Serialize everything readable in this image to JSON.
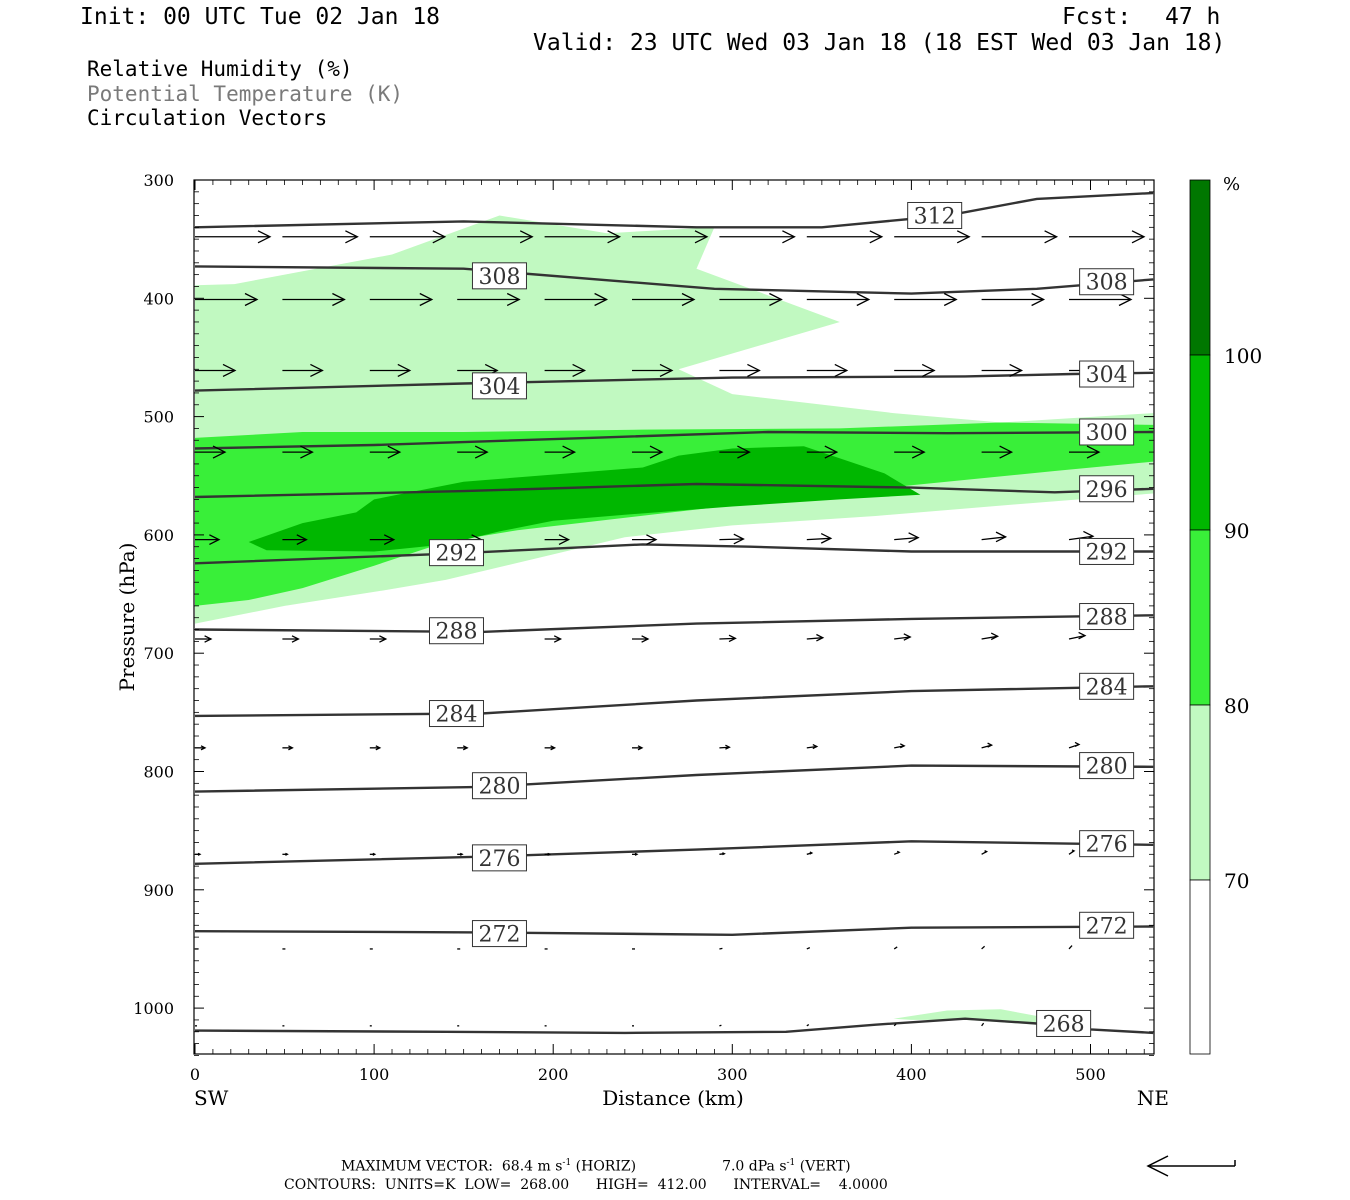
{
  "header": {
    "init": "Init: 00 UTC Tue 02 Jan 18",
    "fcst_label": "Fcst:",
    "fcst_value": "47 h",
    "valid": "Valid: 23 UTC Wed 03 Jan 18 (18 EST Wed 03 Jan 18)"
  },
  "legend": {
    "rh": "Relative Humidity (%)",
    "theta": "Potential Temperature (K)",
    "vectors": "Circulation Vectors"
  },
  "footer": {
    "maxvec": "MAXIMUM VECTOR:  68.4 m s",
    "maxvec_h": " (HORIZ)",
    "maxvec_v_prefix": "7.0 dPa s",
    "maxvec_v": " (VERT)",
    "sup": "-1",
    "contours": "CONTOURS:  UNITS=K  LOW=  268.00      HIGH=  412.00      INTERVAL=    4.0000"
  },
  "colors": {
    "rh70": "#c1f9c1",
    "rh80": "#39ef39",
    "rh90": "#00b700",
    "rh100": "#007700",
    "contour": "#333333",
    "text_gray": "#7a7a7a"
  },
  "chart_data": {
    "type": "cross-section",
    "xlabel": "Distance (km)",
    "ylabel": "Pressure (hPa)",
    "xlim": [
      0,
      535
    ],
    "ylim": [
      1040,
      300
    ],
    "x_ticks": [
      "0",
      "100",
      "200",
      "300",
      "400",
      "500"
    ],
    "y_ticks": [
      "300",
      "400",
      "500",
      "600",
      "700",
      "800",
      "900",
      "1000"
    ],
    "x_end_labels": {
      "left": "SW",
      "right": "NE"
    },
    "colorbar": {
      "unit": "%",
      "levels": [
        "70",
        "80",
        "90",
        "100"
      ]
    },
    "rh_fills": [
      {
        "level": 70,
        "points": [
          [
            0,
            389
          ],
          [
            22,
            388
          ],
          [
            110,
            363
          ],
          [
            170,
            330
          ],
          [
            230,
            345
          ],
          [
            290,
            340
          ],
          [
            280,
            375
          ],
          [
            360,
            420
          ],
          [
            270,
            460
          ],
          [
            300,
            481
          ],
          [
            390,
            497
          ],
          [
            450,
            505
          ],
          [
            535,
            497
          ],
          [
            535,
            565
          ],
          [
            460,
            574
          ],
          [
            380,
            584
          ],
          [
            300,
            592
          ],
          [
            240,
            602
          ],
          [
            190,
            620
          ],
          [
            140,
            638
          ],
          [
            105,
            647
          ],
          [
            50,
            660
          ],
          [
            0,
            675
          ]
        ]
      },
      {
        "level": 80,
        "points": [
          [
            0,
            518
          ],
          [
            60,
            513
          ],
          [
            150,
            513
          ],
          [
            250,
            511
          ],
          [
            360,
            510
          ],
          [
            450,
            505
          ],
          [
            535,
            507
          ],
          [
            535,
            538
          ],
          [
            480,
            546
          ],
          [
            400,
            558
          ],
          [
            330,
            570
          ],
          [
            260,
            582
          ],
          [
            180,
            596
          ],
          [
            140,
            606
          ],
          [
            100,
            626
          ],
          [
            60,
            645
          ],
          [
            30,
            655
          ],
          [
            0,
            660
          ]
        ]
      },
      {
        "level": 90,
        "points": [
          [
            30,
            606
          ],
          [
            60,
            590
          ],
          [
            90,
            581
          ],
          [
            100,
            570
          ],
          [
            150,
            555
          ],
          [
            250,
            543
          ],
          [
            270,
            533
          ],
          [
            300,
            527
          ],
          [
            340,
            525
          ],
          [
            385,
            548
          ],
          [
            405,
            566
          ],
          [
            360,
            570
          ],
          [
            300,
            576
          ],
          [
            240,
            583
          ],
          [
            200,
            588
          ],
          [
            170,
            597
          ],
          [
            140,
            608
          ],
          [
            100,
            614
          ],
          [
            40,
            613
          ]
        ]
      },
      {
        "level": 70,
        "points": [
          [
            390,
            1009
          ],
          [
            420,
            1002
          ],
          [
            450,
            1001
          ],
          [
            475,
            1008
          ],
          [
            470,
            1014
          ],
          [
            430,
            1010
          ],
          [
            400,
            1010
          ]
        ]
      }
    ],
    "theta_contours": [
      {
        "value": "312",
        "points": [
          [
            0,
            340
          ],
          [
            150,
            335
          ],
          [
            280,
            340
          ],
          [
            350,
            340
          ],
          [
            420,
            330
          ],
          [
            470,
            316
          ],
          [
            535,
            311
          ]
        ],
        "labels": [
          [
            413,
            330
          ]
        ]
      },
      {
        "value": "308",
        "points": [
          [
            0,
            373
          ],
          [
            150,
            375
          ],
          [
            290,
            392
          ],
          [
            400,
            396
          ],
          [
            470,
            392
          ],
          [
            535,
            384
          ]
        ],
        "labels": [
          [
            170,
            381
          ],
          [
            509,
            386
          ]
        ]
      },
      {
        "value": "304",
        "points": [
          [
            0,
            478
          ],
          [
            150,
            472
          ],
          [
            300,
            467
          ],
          [
            430,
            466
          ],
          [
            490,
            464
          ],
          [
            535,
            463
          ]
        ],
        "labels": [
          [
            170,
            474
          ],
          [
            509,
            464
          ]
        ]
      },
      {
        "value": "300",
        "points": [
          [
            0,
            527
          ],
          [
            100,
            524
          ],
          [
            220,
            518
          ],
          [
            320,
            513
          ],
          [
            420,
            514
          ],
          [
            535,
            513
          ]
        ],
        "labels": [
          [
            509,
            513
          ]
        ]
      },
      {
        "value": "296",
        "points": [
          [
            0,
            568
          ],
          [
            150,
            563
          ],
          [
            280,
            557
          ],
          [
            400,
            560
          ],
          [
            480,
            564
          ],
          [
            535,
            561
          ]
        ],
        "labels": [
          [
            509,
            561
          ]
        ]
      },
      {
        "value": "292",
        "points": [
          [
            0,
            624
          ],
          [
            140,
            616
          ],
          [
            250,
            608
          ],
          [
            310,
            610
          ],
          [
            400,
            614
          ],
          [
            535,
            614
          ]
        ],
        "labels": [
          [
            146,
            615
          ],
          [
            509,
            614
          ]
        ]
      },
      {
        "value": "288",
        "points": [
          [
            0,
            680
          ],
          [
            160,
            682
          ],
          [
            280,
            675
          ],
          [
            400,
            671
          ],
          [
            535,
            668
          ]
        ],
        "labels": [
          [
            146,
            681
          ],
          [
            509,
            669
          ]
        ]
      },
      {
        "value": "284",
        "points": [
          [
            0,
            753
          ],
          [
            160,
            751
          ],
          [
            280,
            740
          ],
          [
            400,
            732
          ],
          [
            535,
            728
          ]
        ],
        "labels": [
          [
            146,
            751
          ],
          [
            509,
            728
          ]
        ]
      },
      {
        "value": "280",
        "points": [
          [
            0,
            817
          ],
          [
            160,
            813
          ],
          [
            280,
            803
          ],
          [
            400,
            795
          ],
          [
            535,
            796
          ]
        ],
        "labels": [
          [
            170,
            812
          ],
          [
            509,
            795
          ]
        ]
      },
      {
        "value": "276",
        "points": [
          [
            0,
            878
          ],
          [
            160,
            872
          ],
          [
            280,
            866
          ],
          [
            400,
            859
          ],
          [
            535,
            862
          ]
        ],
        "labels": [
          [
            170,
            873
          ],
          [
            509,
            861
          ]
        ]
      },
      {
        "value": "272",
        "points": [
          [
            0,
            935
          ],
          [
            160,
            936
          ],
          [
            300,
            938
          ],
          [
            400,
            932
          ],
          [
            535,
            931
          ]
        ],
        "labels": [
          [
            170,
            937
          ],
          [
            509,
            930
          ]
        ]
      },
      {
        "value": "268",
        "points": [
          [
            0,
            1019
          ],
          [
            140,
            1020
          ],
          [
            240,
            1021
          ],
          [
            330,
            1020
          ],
          [
            380,
            1014
          ],
          [
            430,
            1009
          ],
          [
            470,
            1013
          ],
          [
            500,
            1018
          ],
          [
            535,
            1021
          ]
        ],
        "labels": [
          [
            485,
            1013
          ]
        ]
      }
    ]
  }
}
